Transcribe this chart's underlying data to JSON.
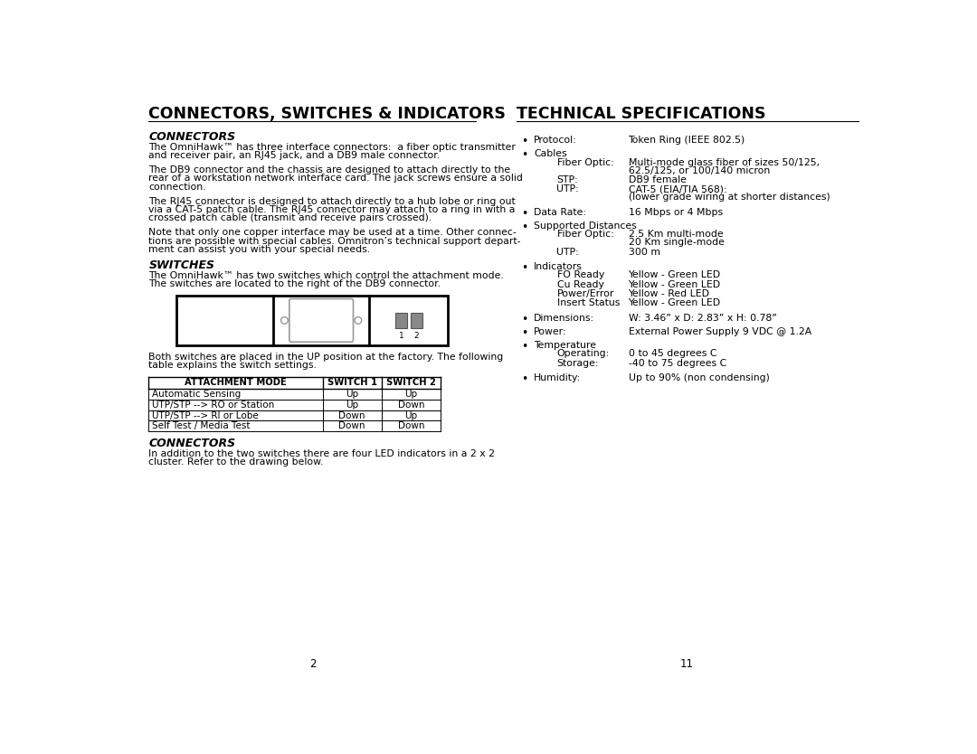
{
  "bg_color": "#ffffff",
  "left_title": "CONNECTORS, SWITCHES & INDICATORS",
  "right_title": "TECHNICAL SPECIFICATIONS",
  "page_number_left": "2",
  "page_number_right": "11",
  "left_column": {
    "sections": [
      {
        "type": "heading",
        "text": "CONNECTORS"
      },
      {
        "type": "paragraph",
        "text": "The OmniHawk™ has three interface connectors:  a fiber optic transmitter\nand receiver pair, an RJ45 jack, and a DB9 male connector."
      },
      {
        "type": "paragraph",
        "text": "The DB9 connector and the chassis are designed to attach directly to the\nrear of a workstation network interface card. The jack screws ensure a solid\nconnection."
      },
      {
        "type": "paragraph",
        "text": "The RJ45 connector is designed to attach directly to a hub lobe or ring out\nvia a CAT-5 patch cable. The RJ45 connector may attach to a ring in with a\ncrossed patch cable (transmit and receive pairs crossed)."
      },
      {
        "type": "paragraph",
        "text": "Note that only one copper interface may be used at a time. Other connec-\ntions are possible with special cables. Omnitron’s technical support depart-\nment can assist you with your special needs."
      },
      {
        "type": "heading",
        "text": "SWITCHES"
      },
      {
        "type": "paragraph",
        "text": "The OmniHawk™ has two switches which control the attachment mode.\nThe switches are located to the right of the DB9 connector."
      },
      {
        "type": "diagram",
        "text": ""
      },
      {
        "type": "paragraph",
        "text": "Both switches are placed in the UP position at the factory. The following\ntable explains the switch settings.",
        "underline_word": "UP"
      },
      {
        "type": "table",
        "headers": [
          "ATTACHMENT MODE",
          "SWITCH 1",
          "SWITCH 2"
        ],
        "rows": [
          [
            "Automatic Sensing",
            "Up",
            "Up"
          ],
          [
            "UTP/STP --> RO or Station",
            "Up",
            "Down"
          ],
          [
            "UTP/STP --> RI or Lobe",
            "Down",
            "Up"
          ],
          [
            "Self Test / Media Test",
            "Down",
            "Down"
          ]
        ]
      },
      {
        "type": "heading",
        "text": "CONNECTORS"
      },
      {
        "type": "paragraph",
        "text": "In addition to the two switches there are four LED indicators in a 2 x 2\ncluster. Refer to the drawing below."
      }
    ]
  },
  "right_column": {
    "items": [
      {
        "bullet": true,
        "label": "Protocol:",
        "indent": 0,
        "value": "Token Ring (IEEE 802.5)"
      },
      {
        "bullet": true,
        "label": "Cables",
        "indent": 0,
        "value": ""
      },
      {
        "bullet": false,
        "label": "Fiber Optic:",
        "indent": 1,
        "value": "Multi-mode glass fiber of sizes 50/125,\n62.5/125, or 100/140 micron"
      },
      {
        "bullet": false,
        "label": "STP:",
        "indent": 1,
        "value": "DB9 female"
      },
      {
        "bullet": false,
        "label": "UTP:",
        "indent": 1,
        "value": "CAT-5 (EIA/TIA 568):\n(lower grade wiring at shorter distances)"
      },
      {
        "bullet": true,
        "label": "Data Rate:",
        "indent": 0,
        "value": "16 Mbps or 4 Mbps"
      },
      {
        "bullet": true,
        "label": "Supported Distances",
        "indent": 0,
        "value": ""
      },
      {
        "bullet": false,
        "label": "Fiber Optic:",
        "indent": 1,
        "value": "2.5 Km multi-mode\n20 Km single-mode"
      },
      {
        "bullet": false,
        "label": "UTP:",
        "indent": 1,
        "value": "300 m"
      },
      {
        "bullet": true,
        "label": "Indicators",
        "indent": 0,
        "value": ""
      },
      {
        "bullet": false,
        "label": "FO Ready",
        "indent": 1,
        "value": "Yellow - Green LED"
      },
      {
        "bullet": false,
        "label": "Cu Ready",
        "indent": 1,
        "value": "Yellow - Green LED"
      },
      {
        "bullet": false,
        "label": "Power/Error",
        "indent": 1,
        "value": "Yellow - Red LED"
      },
      {
        "bullet": false,
        "label": "Insert Status",
        "indent": 1,
        "value": "Yellow - Green LED"
      },
      {
        "bullet": true,
        "label": "Dimensions:",
        "indent": 0,
        "value": "W: 3.46” x D: 2.83” x H: 0.78”"
      },
      {
        "bullet": true,
        "label": "Power:",
        "indent": 0,
        "value": "External Power Supply 9 VDC @ 1.2A"
      },
      {
        "bullet": true,
        "label": "Temperature",
        "indent": 0,
        "value": ""
      },
      {
        "bullet": false,
        "label": "Operating:",
        "indent": 1,
        "value": "0 to 45 degrees C"
      },
      {
        "bullet": false,
        "label": "Storage:",
        "indent": 1,
        "value": "-40 to 75 degrees C"
      },
      {
        "bullet": true,
        "label": "Humidity:",
        "indent": 0,
        "value": "Up to 90% (non condensing)"
      }
    ]
  }
}
